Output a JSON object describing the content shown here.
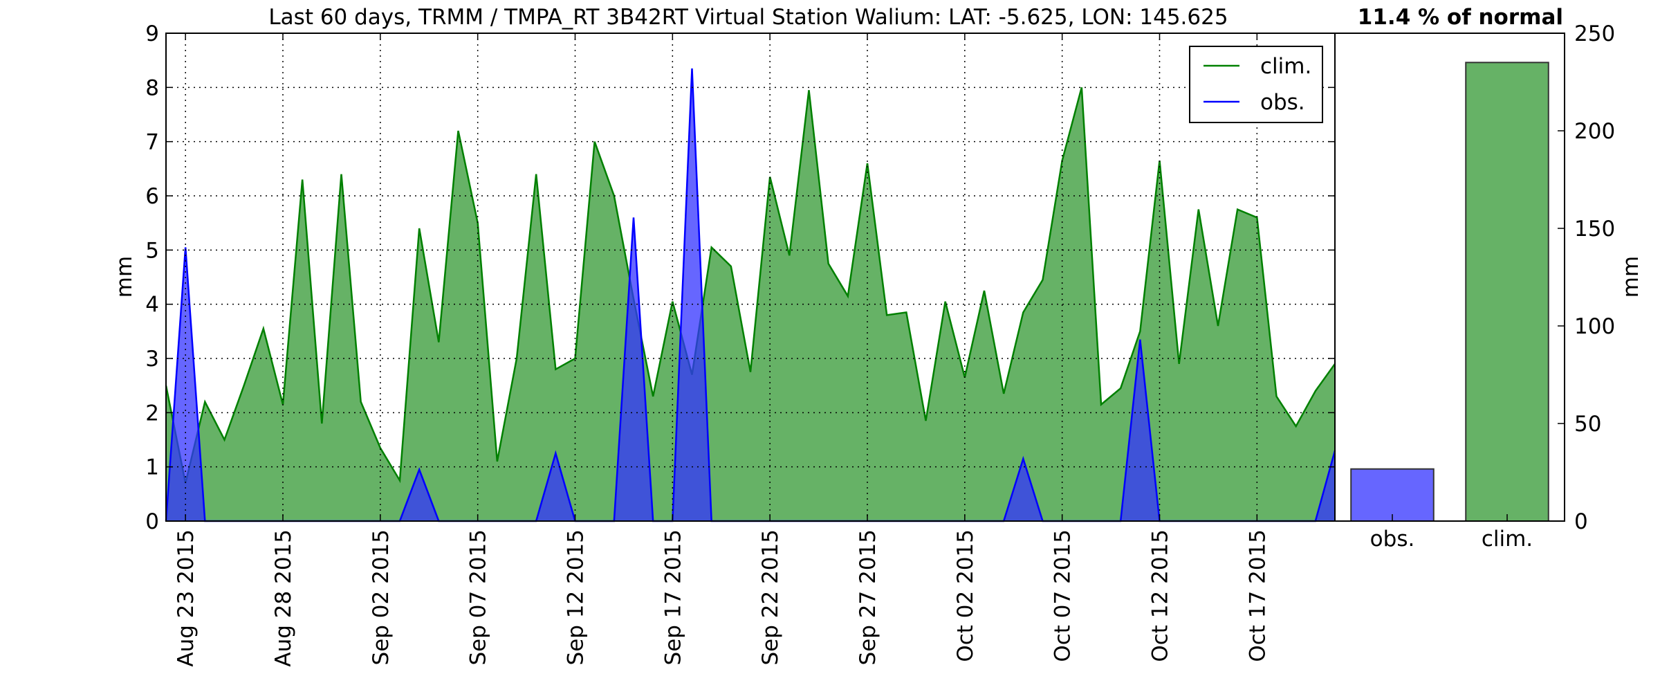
{
  "title": "Last 60 days, TRMM / TMPA_RT 3B42RT Virtual Station Walium: LAT: -5.625, LON: 145.625",
  "summary": "11.4 % of normal",
  "chart_data": [
    {
      "type": "area",
      "ylabel": "mm",
      "ylim": [
        0,
        9
      ],
      "yticks": [
        "0",
        "1",
        "2",
        "3",
        "4",
        "5",
        "6",
        "7",
        "8",
        "9"
      ],
      "xlim": [
        "2015-08-22",
        "2015-10-21"
      ],
      "xticks": [
        {
          "date": "2015-08-23",
          "label": "Aug 23 2015"
        },
        {
          "date": "2015-08-28",
          "label": "Aug 28 2015"
        },
        {
          "date": "2015-09-02",
          "label": "Sep 02 2015"
        },
        {
          "date": "2015-09-07",
          "label": "Sep 07 2015"
        },
        {
          "date": "2015-09-12",
          "label": "Sep 12 2015"
        },
        {
          "date": "2015-09-17",
          "label": "Sep 17 2015"
        },
        {
          "date": "2015-09-22",
          "label": "Sep 22 2015"
        },
        {
          "date": "2015-09-27",
          "label": "Sep 27 2015"
        },
        {
          "date": "2015-10-02",
          "label": "Oct 02 2015"
        },
        {
          "date": "2015-10-07",
          "label": "Oct 07 2015"
        },
        {
          "date": "2015-10-12",
          "label": "Oct 12 2015"
        },
        {
          "date": "2015-10-17",
          "label": "Oct 17 2015"
        }
      ],
      "grid": true,
      "legend": "top-right",
      "series": [
        {
          "name": "clim.",
          "color": "#008000",
          "fill": "#66b266",
          "points": [
            [
              "2015-08-22",
              2.5
            ],
            [
              "2015-08-23",
              0.7
            ],
            [
              "2015-08-24",
              2.2
            ],
            [
              "2015-08-25",
              1.5
            ],
            [
              "2015-08-26",
              2.5
            ],
            [
              "2015-08-27",
              3.55
            ],
            [
              "2015-08-28",
              2.15
            ],
            [
              "2015-08-29",
              6.3
            ],
            [
              "2015-08-30",
              1.8
            ],
            [
              "2015-08-31",
              6.4
            ],
            [
              "2015-09-01",
              2.2
            ],
            [
              "2015-09-02",
              1.35
            ],
            [
              "2015-09-03",
              0.75
            ],
            [
              "2015-09-04",
              5.4
            ],
            [
              "2015-09-05",
              3.3
            ],
            [
              "2015-09-06",
              7.2
            ],
            [
              "2015-09-07",
              5.5
            ],
            [
              "2015-09-08",
              1.1
            ],
            [
              "2015-09-09",
              3.0
            ],
            [
              "2015-09-10",
              6.4
            ],
            [
              "2015-09-11",
              2.8
            ],
            [
              "2015-09-12",
              3.0
            ],
            [
              "2015-09-13",
              7.0
            ],
            [
              "2015-09-14",
              6.0
            ],
            [
              "2015-09-15",
              4.1
            ],
            [
              "2015-09-16",
              2.3
            ],
            [
              "2015-09-17",
              4.05
            ],
            [
              "2015-09-18",
              2.7
            ],
            [
              "2015-09-19",
              5.05
            ],
            [
              "2015-09-20",
              4.7
            ],
            [
              "2015-09-21",
              2.75
            ],
            [
              "2015-09-22",
              6.35
            ],
            [
              "2015-09-23",
              4.9
            ],
            [
              "2015-09-24",
              7.95
            ],
            [
              "2015-09-25",
              4.75
            ],
            [
              "2015-09-26",
              4.15
            ],
            [
              "2015-09-27",
              6.6
            ],
            [
              "2015-09-28",
              3.8
            ],
            [
              "2015-09-29",
              3.85
            ],
            [
              "2015-09-30",
              1.85
            ],
            [
              "2015-10-01",
              4.05
            ],
            [
              "2015-10-02",
              2.65
            ],
            [
              "2015-10-03",
              4.25
            ],
            [
              "2015-10-04",
              2.35
            ],
            [
              "2015-10-05",
              3.85
            ],
            [
              "2015-10-06",
              4.45
            ],
            [
              "2015-10-07",
              6.65
            ],
            [
              "2015-10-08",
              8.0
            ],
            [
              "2015-10-09",
              2.15
            ],
            [
              "2015-10-10",
              2.45
            ],
            [
              "2015-10-11",
              3.5
            ],
            [
              "2015-10-12",
              6.65
            ],
            [
              "2015-10-13",
              2.9
            ],
            [
              "2015-10-14",
              5.75
            ],
            [
              "2015-10-15",
              3.6
            ],
            [
              "2015-10-16",
              5.75
            ],
            [
              "2015-10-17",
              5.6
            ],
            [
              "2015-10-18",
              2.3
            ],
            [
              "2015-10-19",
              1.75
            ],
            [
              "2015-10-20",
              2.4
            ],
            [
              "2015-10-21",
              2.9
            ]
          ]
        },
        {
          "name": "obs.",
          "color": "#0000ff",
          "fill": "#3333ff",
          "points": [
            [
              "2015-08-22",
              0
            ],
            [
              "2015-08-23",
              5.05
            ],
            [
              "2015-08-24",
              0
            ],
            [
              "2015-08-25",
              0
            ],
            [
              "2015-08-26",
              0
            ],
            [
              "2015-08-27",
              0
            ],
            [
              "2015-08-28",
              0
            ],
            [
              "2015-08-29",
              0
            ],
            [
              "2015-08-30",
              0
            ],
            [
              "2015-08-31",
              0
            ],
            [
              "2015-09-01",
              0
            ],
            [
              "2015-09-02",
              0
            ],
            [
              "2015-09-03",
              0
            ],
            [
              "2015-09-04",
              0.95
            ],
            [
              "2015-09-05",
              0
            ],
            [
              "2015-09-06",
              0
            ],
            [
              "2015-09-07",
              0
            ],
            [
              "2015-09-08",
              0
            ],
            [
              "2015-09-09",
              0
            ],
            [
              "2015-09-10",
              0
            ],
            [
              "2015-09-11",
              1.25
            ],
            [
              "2015-09-12",
              0
            ],
            [
              "2015-09-13",
              0
            ],
            [
              "2015-09-14",
              0
            ],
            [
              "2015-09-15",
              5.6
            ],
            [
              "2015-09-16",
              0
            ],
            [
              "2015-09-17",
              0
            ],
            [
              "2015-09-18",
              8.35
            ],
            [
              "2015-09-19",
              0
            ],
            [
              "2015-09-20",
              0
            ],
            [
              "2015-09-21",
              0
            ],
            [
              "2015-09-22",
              0
            ],
            [
              "2015-09-23",
              0
            ],
            [
              "2015-09-24",
              0
            ],
            [
              "2015-09-25",
              0
            ],
            [
              "2015-09-26",
              0
            ],
            [
              "2015-09-27",
              0
            ],
            [
              "2015-09-28",
              0
            ],
            [
              "2015-09-29",
              0
            ],
            [
              "2015-09-30",
              0
            ],
            [
              "2015-10-01",
              0
            ],
            [
              "2015-10-02",
              0
            ],
            [
              "2015-10-03",
              0
            ],
            [
              "2015-10-04",
              0
            ],
            [
              "2015-10-05",
              1.15
            ],
            [
              "2015-10-06",
              0
            ],
            [
              "2015-10-07",
              0
            ],
            [
              "2015-10-08",
              0
            ],
            [
              "2015-10-09",
              0
            ],
            [
              "2015-10-10",
              0
            ],
            [
              "2015-10-11",
              3.35
            ],
            [
              "2015-10-12",
              0
            ],
            [
              "2015-10-13",
              0
            ],
            [
              "2015-10-14",
              0
            ],
            [
              "2015-10-15",
              0
            ],
            [
              "2015-10-16",
              0
            ],
            [
              "2015-10-17",
              0
            ],
            [
              "2015-10-18",
              0
            ],
            [
              "2015-10-19",
              0
            ],
            [
              "2015-10-20",
              0
            ],
            [
              "2015-10-21",
              1.3
            ]
          ]
        }
      ]
    },
    {
      "type": "bar",
      "ylabel": "mm",
      "ylim": [
        0,
        250
      ],
      "yticks": [
        "0",
        "50",
        "100",
        "150",
        "200",
        "250"
      ],
      "categories": [
        "obs.",
        "clim."
      ],
      "values": [
        26.7,
        235
      ],
      "colors": [
        "#6666ff",
        "#66b266"
      ]
    }
  ]
}
